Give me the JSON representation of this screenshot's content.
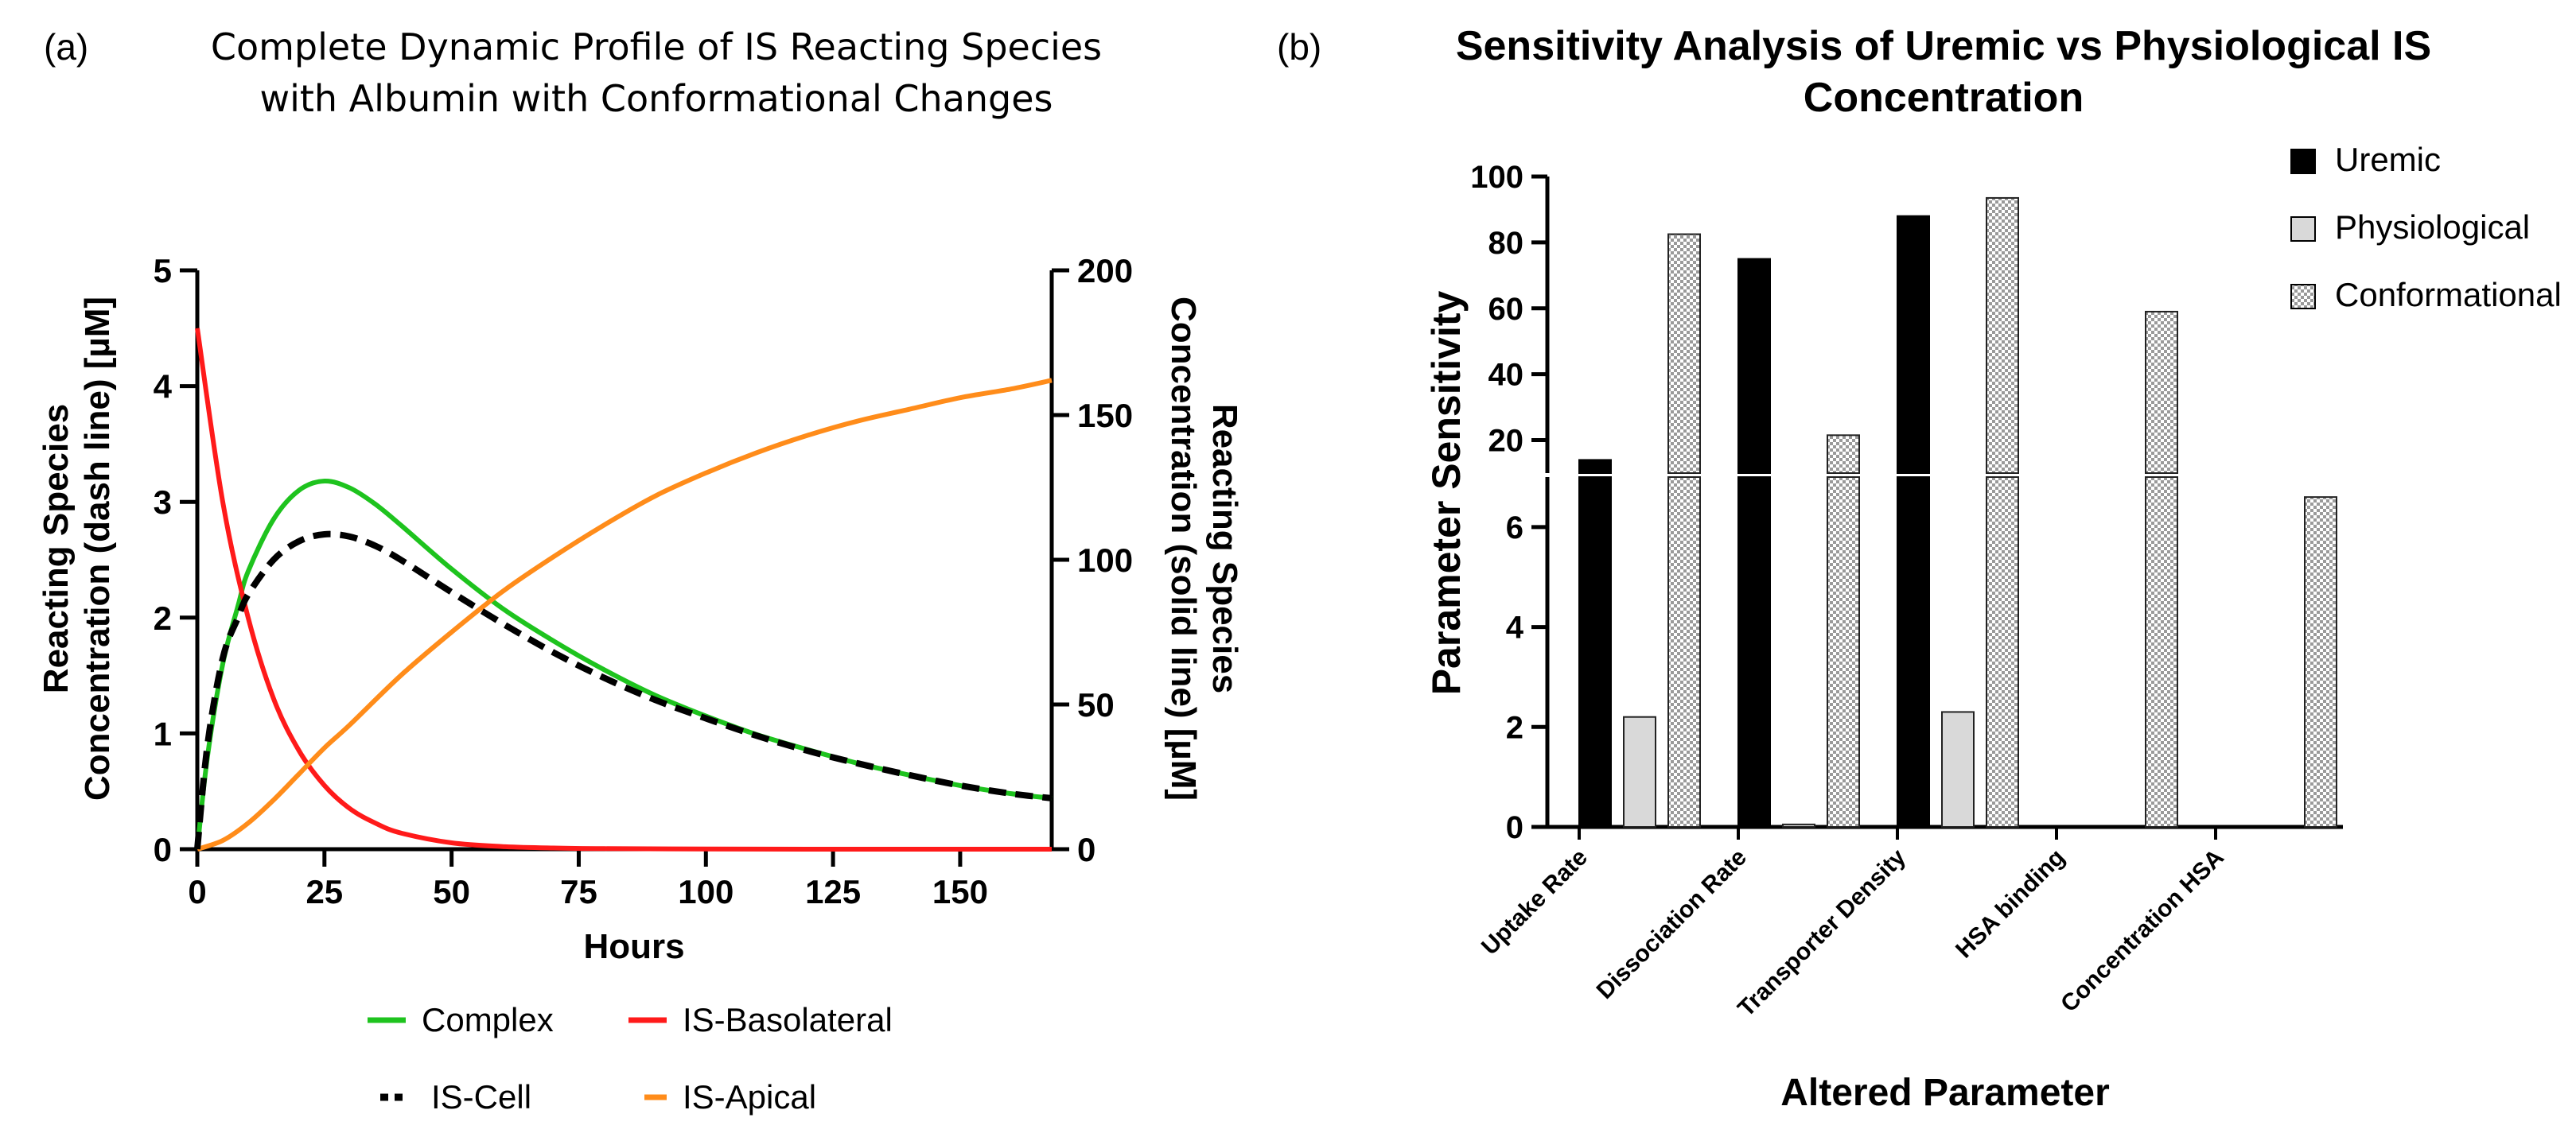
{
  "panels": [
    {
      "label": "(a)",
      "title_lines": [
        "Complete Dynamic Profile of IS Reacting Species",
        "with Albumin with Conformational Changes"
      ],
      "xlabel": "Hours",
      "ylabel_left": [
        "Reacting Species",
        "Concentration (dash line) [µM]"
      ],
      "ylabel_right": [
        "Reacting Species",
        "Concentration (solid line) [µM]"
      ],
      "legend": [
        {
          "label": "Complex",
          "color": "#1ec31e",
          "style": "solid"
        },
        {
          "label": "IS-Basolateral",
          "color": "#ff1a1a",
          "style": "solid"
        },
        {
          "label": "IS-Cell",
          "color": "#000000",
          "style": "dash"
        },
        {
          "label": "IS-Apical",
          "color": "#ff8c1a",
          "style": "solid"
        }
      ]
    },
    {
      "label": "(b)",
      "title_lines": [
        "Sensitivity Analysis of Uremic vs Physiological IS",
        "Concentration"
      ],
      "xlabel": "Altered Parameter",
      "ylabel": "Parameter Sensitivity",
      "legend": [
        {
          "label": "Uremic",
          "fill": "solid-black"
        },
        {
          "label": "Physiological",
          "fill": "light-gray"
        },
        {
          "label": "Conformational",
          "fill": "checker"
        }
      ]
    }
  ],
  "chart_data": [
    {
      "type": "line",
      "xlim": [
        0,
        168
      ],
      "xticks": [
        0,
        25,
        50,
        75,
        100,
        125,
        150
      ],
      "left_axis": {
        "ylim": [
          0,
          5
        ],
        "ticks": [
          0,
          1,
          2,
          3,
          4,
          5
        ]
      },
      "right_axis": {
        "ylim": [
          0,
          200
        ],
        "ticks": [
          0,
          50,
          100,
          150,
          200
        ]
      },
      "series": [
        {
          "name": "Complex",
          "axis": "left",
          "color": "#1ec31e",
          "style": "solid",
          "x": [
            0,
            2,
            5,
            8,
            10,
            15,
            20,
            25,
            30,
            35,
            40,
            50,
            60,
            70,
            80,
            90,
            100,
            110,
            120,
            130,
            140,
            150,
            160,
            168
          ],
          "y": [
            0,
            0.8,
            1.6,
            2.1,
            2.4,
            2.85,
            3.1,
            3.18,
            3.12,
            2.98,
            2.8,
            2.42,
            2.08,
            1.8,
            1.55,
            1.33,
            1.15,
            0.99,
            0.86,
            0.74,
            0.64,
            0.55,
            0.48,
            0.44
          ]
        },
        {
          "name": "IS-Cell",
          "axis": "left",
          "color": "#000000",
          "style": "dash",
          "x": [
            0,
            2,
            5,
            8,
            10,
            15,
            20,
            25,
            30,
            35,
            40,
            50,
            60,
            70,
            80,
            90,
            100,
            110,
            120,
            130,
            140,
            150,
            160,
            168
          ],
          "y": [
            0,
            0.9,
            1.65,
            2.0,
            2.2,
            2.5,
            2.66,
            2.72,
            2.7,
            2.62,
            2.5,
            2.22,
            1.95,
            1.7,
            1.48,
            1.29,
            1.13,
            0.98,
            0.85,
            0.74,
            0.64,
            0.55,
            0.48,
            0.44
          ]
        },
        {
          "name": "IS-Basolateral",
          "axis": "right",
          "color": "#ff1a1a",
          "style": "solid",
          "x": [
            0,
            5,
            10,
            15,
            20,
            25,
            30,
            35,
            40,
            50,
            60,
            70,
            80,
            100,
            120,
            140,
            168
          ],
          "y": [
            180,
            120,
            80,
            52,
            34,
            22,
            14,
            9,
            5.6,
            2.2,
            0.9,
            0.4,
            0.2,
            0.05,
            0,
            0,
            0
          ]
        },
        {
          "name": "IS-Apical",
          "axis": "right",
          "color": "#ff8c1a",
          "style": "solid",
          "x": [
            0,
            5,
            10,
            15,
            20,
            25,
            30,
            40,
            50,
            60,
            70,
            80,
            90,
            100,
            110,
            120,
            130,
            140,
            150,
            160,
            168
          ],
          "y": [
            0,
            3,
            9,
            17,
            26,
            35,
            43,
            60,
            75,
            89,
            101,
            112,
            122,
            130,
            137,
            143,
            148,
            152,
            156,
            159,
            162
          ]
        }
      ]
    },
    {
      "type": "bar",
      "categories": [
        "Uptake Rate",
        "Dissociation Rate",
        "Transporter Density",
        "HSA binding",
        "Concentration HSA"
      ],
      "ylim": [
        0,
        100
      ],
      "axis_break": {
        "lower": [
          0,
          7
        ],
        "upper": [
          10,
          100
        ]
      },
      "lower_ticks": [
        0,
        2,
        4,
        6
      ],
      "upper_ticks": [
        20,
        40,
        60,
        80,
        100
      ],
      "series": [
        {
          "name": "Uremic",
          "fill": "solid-black",
          "values": [
            14,
            75,
            88,
            0,
            0
          ]
        },
        {
          "name": "Physiological",
          "fill": "light-gray",
          "values": [
            2.2,
            0.05,
            2.3,
            0,
            0
          ]
        },
        {
          "name": "Conformational",
          "fill": "checker",
          "values": [
            82.5,
            21.5,
            93.5,
            59,
            6.6
          ]
        }
      ]
    }
  ]
}
